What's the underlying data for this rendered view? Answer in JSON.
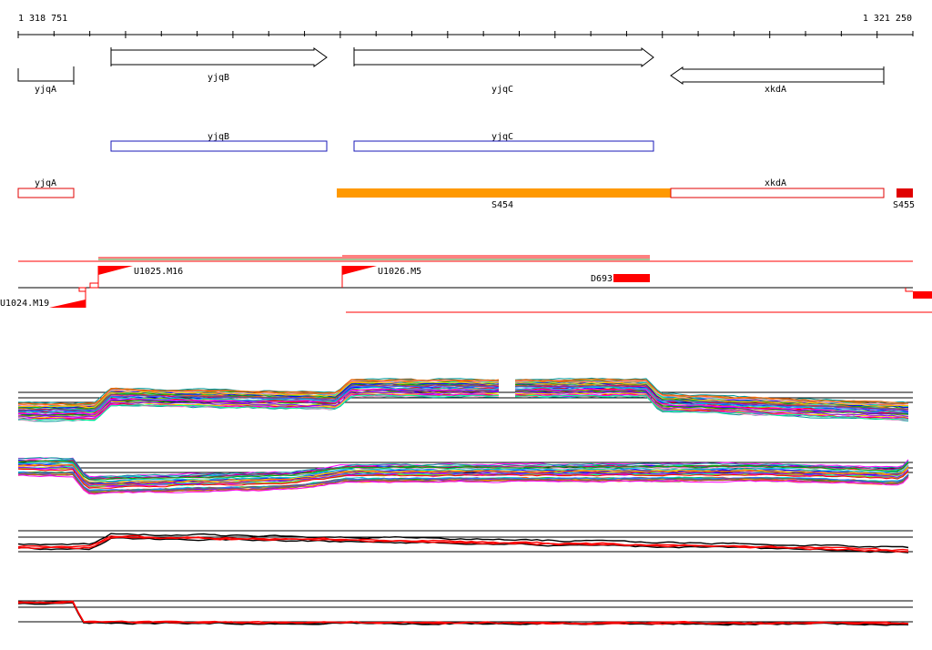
{
  "coordinates": {
    "start_label": "1 318 751",
    "end_label": "1 321 250"
  },
  "genes": [
    {
      "name": "yjqA",
      "strand": "+"
    },
    {
      "name": "yjqB",
      "strand": "+"
    },
    {
      "name": "yjqC",
      "strand": "+"
    },
    {
      "name": "xkdA",
      "strand": "-"
    }
  ],
  "blue_features": [
    {
      "name": "yjqB"
    },
    {
      "name": "yjqC"
    }
  ],
  "red_features": [
    {
      "name": "yjqA",
      "style": "outline"
    },
    {
      "name": "S454",
      "style": "orange-fill"
    },
    {
      "name": "xkdA",
      "style": "outline"
    },
    {
      "name": "S455",
      "style": "red-fill"
    }
  ],
  "transcripts": [
    {
      "name": "U1024.M19"
    },
    {
      "name": "U1025.M16"
    },
    {
      "name": "U1026.M5"
    },
    {
      "name": "D693"
    }
  ],
  "colors": {
    "blue_feature": "#1a1ab8",
    "red_feature": "#e00000",
    "orange_feature": "#ff9900",
    "transcript_red": "#ff0000",
    "transcript_green": "#4a8a2a",
    "profile_palette": [
      "#ff0000",
      "#00aa00",
      "#0000ff",
      "#ff00ff",
      "#00cccc",
      "#ffcc00",
      "#8800ff",
      "#ff6600",
      "#009999",
      "#99cc00",
      "#cc0066",
      "#3366ff",
      "#666666",
      "#ff99cc",
      "#00ff99",
      "#996633"
    ]
  }
}
